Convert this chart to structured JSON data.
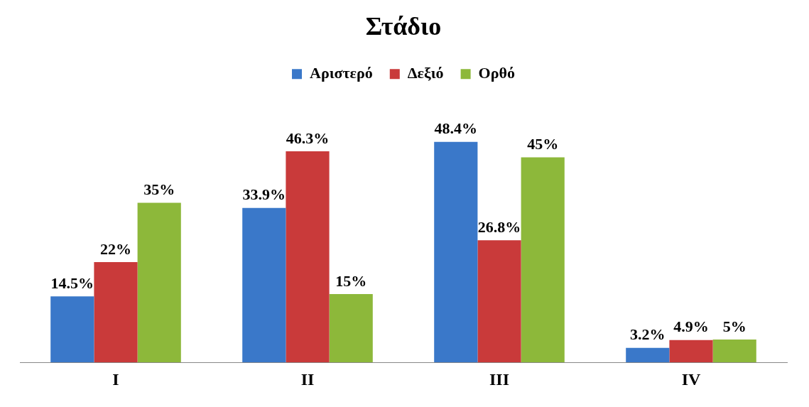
{
  "chart_data": {
    "type": "bar",
    "title": "Στάδιο",
    "categories": [
      "I",
      "II",
      "III",
      "IV"
    ],
    "legend": "top",
    "grid": false,
    "series": [
      {
        "name": "Αριστερό",
        "color": "#3a78c9",
        "values": [
          14.5,
          33.9,
          48.4,
          3.2
        ],
        "value_labels": [
          "14.5%",
          "33.9%",
          "48.4%",
          "3.2%"
        ]
      },
      {
        "name": "Δεξιό",
        "color": "#c93a3a",
        "values": [
          22,
          46.3,
          26.8,
          4.9
        ],
        "value_labels": [
          "22%",
          "46.3%",
          "26.8%",
          "4.9%"
        ]
      },
      {
        "name": "Ορθό",
        "color": "#8db83a",
        "values": [
          35,
          15,
          45,
          5
        ],
        "value_labels": [
          "35%",
          "15%",
          "45%",
          "5%"
        ]
      }
    ]
  }
}
